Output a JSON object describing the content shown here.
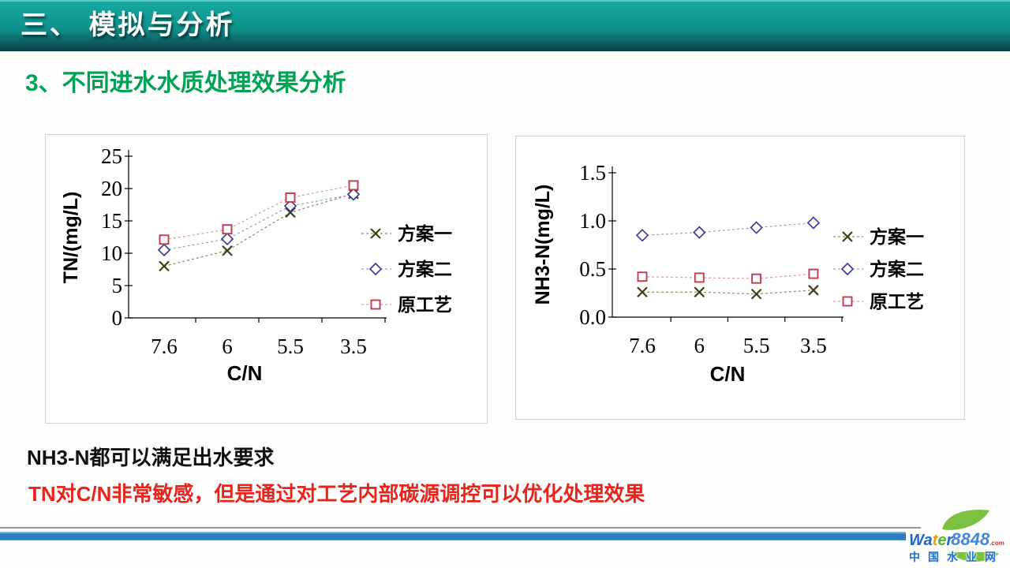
{
  "banner": {
    "title": "三、 模拟与分析"
  },
  "heading": "3、不同进水水质处理效果分析",
  "notes": {
    "note1": "NH3-N都可以满足出水要求",
    "note2": "TN对C/N非常敏感，但是通过对工艺内部碳源调控可以优化处理效果",
    "note2_color": "#e8241c"
  },
  "footer": {
    "bar_color": "#2b7dbd",
    "logo": {
      "brand_wa": "Wa",
      "brand_t": "t",
      "brand_e": "e",
      "brand_r": "r",
      "brand_num": "8848",
      "domain_suffix": ".com",
      "site_name": "中国水业网"
    }
  },
  "chart_data": [
    {
      "type": "line",
      "title": "",
      "xlabel": "C/N",
      "ylabel": "TN/(mg/L)",
      "categories": [
        "7.6",
        "6",
        "5.5",
        "3.5"
      ],
      "ylim": [
        0,
        25
      ],
      "yticks": [
        0,
        5,
        10,
        15,
        20,
        25
      ],
      "ytick_labels": [
        "0",
        "5",
        "10",
        "15",
        "20",
        "25"
      ],
      "grid": false,
      "legend_position": "right",
      "series": [
        {
          "name": "方案一",
          "marker": "x",
          "marker_color": "#3f3d14",
          "line_color": "#8c8a66",
          "values": [
            8,
            10.4,
            16.3,
            19.2
          ]
        },
        {
          "name": "方案二",
          "marker": "diamond",
          "marker_color": "#3c3e96",
          "line_color": "#9aa0bd",
          "values": [
            10.5,
            12.2,
            17.3,
            19.1
          ]
        },
        {
          "name": "原工艺",
          "marker": "square",
          "marker_color": "#c43a4b",
          "line_color": "#d99aa6",
          "values": [
            12.1,
            13.7,
            18.6,
            20.5
          ]
        }
      ]
    },
    {
      "type": "line",
      "title": "",
      "xlabel": "C/N",
      "ylabel": "NH3-N(mg/L)",
      "categories": [
        "7.6",
        "6",
        "5.5",
        "3.5"
      ],
      "ylim": [
        0,
        1.5
      ],
      "yticks": [
        0,
        0.5,
        1.0,
        1.5
      ],
      "ytick_labels": [
        "0.0",
        "0.5",
        "1.0",
        "1.5"
      ],
      "grid": false,
      "legend_position": "right",
      "series": [
        {
          "name": "方案一",
          "marker": "x",
          "marker_color": "#3f3d14",
          "line_color": "#8c8a66",
          "values": [
            0.26,
            0.26,
            0.24,
            0.28
          ]
        },
        {
          "name": "方案二",
          "marker": "diamond",
          "marker_color": "#3c3e96",
          "line_color": "#9aa0bd",
          "values": [
            0.85,
            0.88,
            0.93,
            0.98
          ]
        },
        {
          "name": "原工艺",
          "marker": "square",
          "marker_color": "#c43a4b",
          "line_color": "#d99aa6",
          "values": [
            0.42,
            0.41,
            0.4,
            0.45
          ]
        }
      ]
    }
  ]
}
